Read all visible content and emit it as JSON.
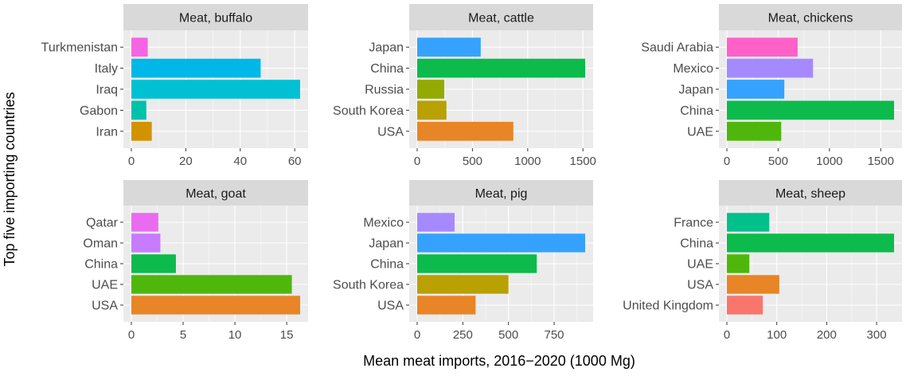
{
  "figure": {
    "ylabel": "Top five importing countries",
    "xlabel": "Mean meat imports, 2016−2020 (1000 Mg)"
  },
  "colors": {
    "panel_bg": "#ebebeb",
    "strip_bg": "#d9d9d9",
    "grid_major": "#ffffff",
    "tick_text": "#4d4d4d",
    "axis_text": "#000000",
    "countries": {
      "Turkmenistan": "#f564e3",
      "Italy": "#00b8e7",
      "Iraq": "#00c1d3",
      "Gabon": "#00c1ab",
      "Iran": "#d39200",
      "Japan": "#35a2ff",
      "China": "#0cbb4b",
      "Russia": "#93aa00",
      "South Korea": "#b8a100",
      "USA": "#e88526",
      "Saudi Arabia": "#ff61c9",
      "Mexico": "#a58aff",
      "UAE": "#4fb70c",
      "Qatar": "#ea6bef",
      "Oman": "#c77cff",
      "France": "#00c08b",
      "United Kingdom": "#f8766d"
    }
  },
  "chart_data": [
    {
      "type": "bar",
      "orientation": "horizontal",
      "title": "Meat, buffalo",
      "categories": [
        "Turkmenistan",
        "Italy",
        "Iraq",
        "Gabon",
        "Iran"
      ],
      "values": [
        6,
        47.5,
        62,
        5.5,
        7.5
      ],
      "xlim": [
        0,
        62
      ],
      "xticks": [
        0,
        20,
        40,
        60
      ]
    },
    {
      "type": "bar",
      "orientation": "horizontal",
      "title": "Meat, cattle",
      "categories": [
        "Japan",
        "China",
        "Russia",
        "South Korea",
        "USA"
      ],
      "values": [
        575,
        1520,
        245,
        265,
        870
      ],
      "xlim": [
        0,
        1520
      ],
      "xticks": [
        0,
        500,
        1000,
        1500
      ]
    },
    {
      "type": "bar",
      "orientation": "horizontal",
      "title": "Meat, chickens",
      "categories": [
        "Saudi Arabia",
        "Mexico",
        "Japan",
        "China",
        "UAE"
      ],
      "values": [
        690,
        840,
        560,
        1630,
        530
      ],
      "xlim": [
        0,
        1630
      ],
      "xticks": [
        0,
        500,
        1000,
        1500
      ]
    },
    {
      "type": "bar",
      "orientation": "horizontal",
      "title": "Meat, goat",
      "categories": [
        "Qatar",
        "Oman",
        "China",
        "UAE",
        "USA"
      ],
      "values": [
        2.6,
        2.8,
        4.3,
        15.5,
        16.3
      ],
      "xlim": [
        0,
        16.3
      ],
      "xticks": [
        0,
        5,
        10,
        15
      ]
    },
    {
      "type": "bar",
      "orientation": "horizontal",
      "title": "Meat, pig",
      "categories": [
        "Mexico",
        "Japan",
        "China",
        "South Korea",
        "USA"
      ],
      "values": [
        205,
        920,
        655,
        500,
        320
      ],
      "xlim": [
        0,
        920
      ],
      "xticks": [
        0,
        250,
        500,
        750
      ]
    },
    {
      "type": "bar",
      "orientation": "horizontal",
      "title": "Meat, sheep",
      "categories": [
        "France",
        "China",
        "UAE",
        "USA",
        "United Kingdom"
      ],
      "values": [
        85,
        335,
        45,
        105,
        72
      ],
      "xlim": [
        0,
        335
      ],
      "xticks": [
        0,
        100,
        200,
        300
      ]
    }
  ]
}
